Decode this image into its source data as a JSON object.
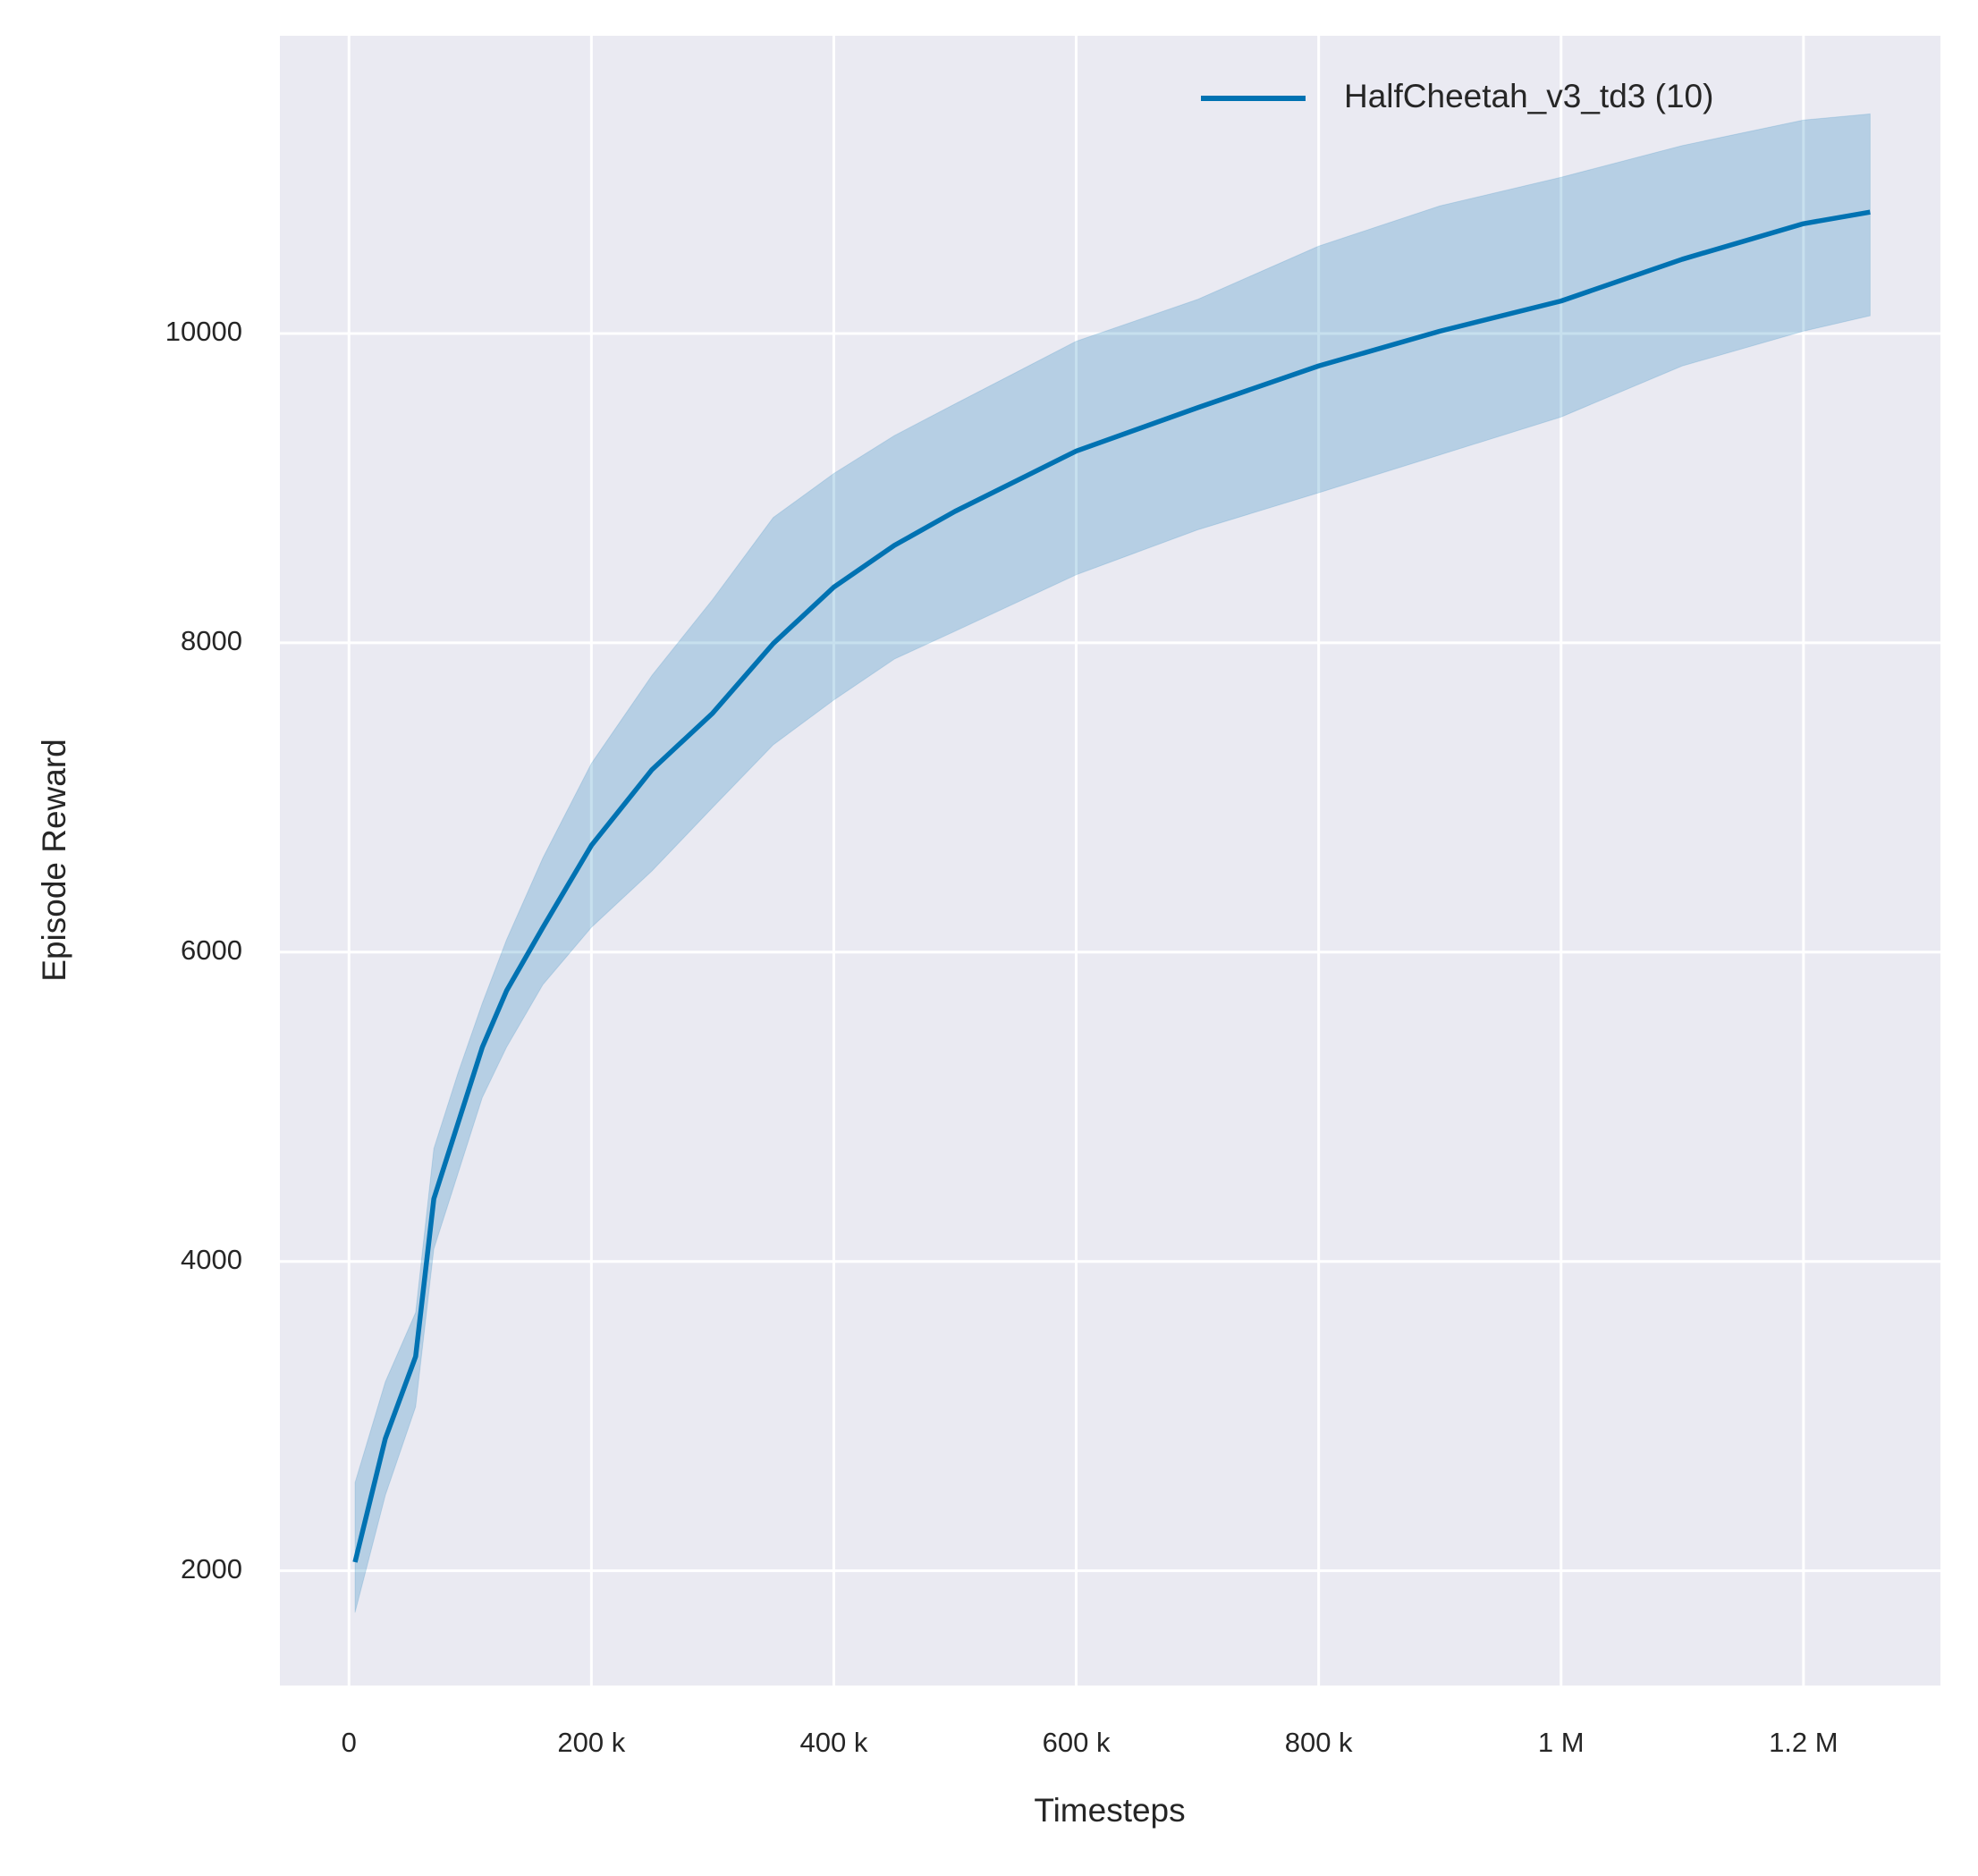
{
  "chart_data": {
    "type": "line",
    "xlabel": "Timesteps",
    "ylabel": "Episode Reward",
    "x": [
      5000,
      30000,
      55000,
      70000,
      90000,
      110000,
      130000,
      160000,
      200000,
      250000,
      300000,
      350000,
      400000,
      450000,
      500000,
      600000,
      700000,
      800000,
      900000,
      1000000,
      1100000,
      1200000,
      1255000
    ],
    "series": [
      {
        "name": "HalfCheetah_v3_td3 (10)",
        "color": "#0072b2",
        "band_color": "#0072b2",
        "values": [
          2056,
          2855,
          3385,
          4405,
          4895,
          5385,
          5750,
          6160,
          6690,
          7180,
          7545,
          7995,
          8360,
          8630,
          8850,
          9240,
          9520,
          9790,
          10015,
          10210,
          10480,
          10710,
          10785
        ],
        "lower": [
          1730,
          2488,
          3060,
          4080,
          4570,
          5060,
          5385,
          5790,
          6160,
          6525,
          6935,
          7340,
          7630,
          7895,
          8075,
          8440,
          8730,
          8970,
          9215,
          9460,
          9790,
          10015,
          10115
        ],
        "upper": [
          2570,
          3222,
          3670,
          4730,
          5220,
          5670,
          6080,
          6610,
          7220,
          7790,
          8280,
          8810,
          9095,
          9340,
          9545,
          9950,
          10220,
          10565,
          10825,
          11010,
          11215,
          11380,
          11420
        ]
      }
    ],
    "xlim": [
      -57000,
      1313000
    ],
    "ylim": [
      1258,
      11925
    ],
    "xticks": [
      0,
      {
        "value": 200000,
        "label": "200 k"
      },
      {
        "value": 400000,
        "label": "400 k"
      },
      {
        "value": 600000,
        "label": "600 k"
      },
      {
        "value": 800000,
        "label": "800 k"
      },
      {
        "value": 1000000,
        "label": "1 M"
      },
      {
        "value": 1200000,
        "label": "1.2 M"
      }
    ],
    "yticks": [
      2000,
      4000,
      6000,
      8000,
      10000
    ],
    "grid": true,
    "legend": "upper right",
    "background": "#eaeaf2"
  }
}
